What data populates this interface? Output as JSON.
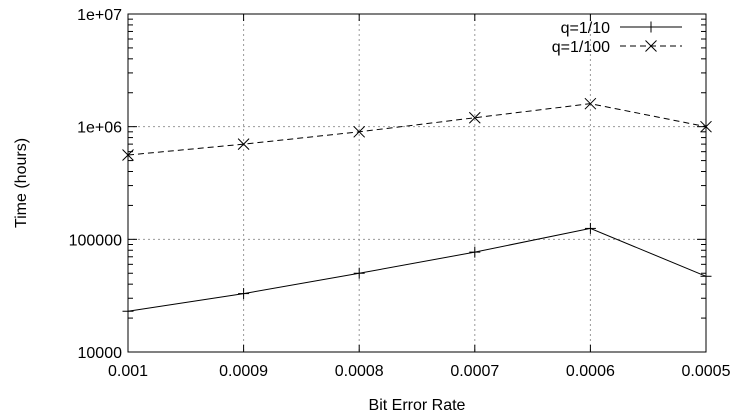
{
  "chart_data": {
    "type": "line",
    "title": "",
    "xlabel": "Bit Error Rate",
    "ylabel": "Time (hours)",
    "xlim": [
      0.001,
      0.0005
    ],
    "x_reversed": true,
    "ylim": [
      10000,
      10000000
    ],
    "y_scale": "log",
    "grid": true,
    "legend_position": "top-right",
    "x_ticks": [
      "0.001",
      "0.0009",
      "0.0008",
      "0.0007",
      "0.0006",
      "0.0005"
    ],
    "y_ticks": [
      "10000",
      "100000",
      "1e+06",
      "1e+07"
    ],
    "x": [
      0.001,
      0.0009,
      0.0008,
      0.0007,
      0.0006,
      0.0005
    ],
    "series": [
      {
        "name": "q=1/10",
        "values": [
          23000,
          33000,
          50000,
          77000,
          125000,
          47000
        ],
        "marker": "plus",
        "dash": "solid",
        "color": "#000000"
      },
      {
        "name": "q=1/100",
        "values": [
          560000,
          700000,
          900000,
          1200000,
          1600000,
          1000000
        ],
        "marker": "cross",
        "dash": "dashed",
        "color": "#000000"
      }
    ]
  }
}
